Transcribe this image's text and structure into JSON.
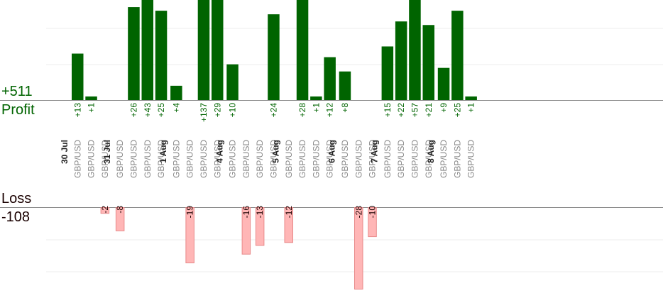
{
  "summary": {
    "profit_total": "+511",
    "profit_label": "Profit",
    "loss_label": "Loss",
    "loss_total": "-108"
  },
  "colors": {
    "profit_bar": "#006400",
    "loss_bar_fill": "#ffb6b6",
    "loss_bar_stroke": "#e88a8a",
    "profit_text": "#006400",
    "loss_text": "#1a0000",
    "category_text": "#888888",
    "date_text": "#222222",
    "grid": "#eeeeee",
    "axis": "#888888"
  },
  "chart_data": {
    "type": "bar",
    "groups": [
      {
        "date": "30 Jul",
        "bars": [
          {
            "label": "GBP/USD",
            "profit": 13
          },
          {
            "label": "GBP/USD",
            "profit": 1
          },
          {
            "label": "GBP/USD",
            "loss": -2
          }
        ]
      },
      {
        "date": "31 Jul",
        "bars": [
          {
            "label": "GBP/USD",
            "loss": -8
          },
          {
            "label": "GBP/USD",
            "profit": 26
          },
          {
            "label": "GBP/USD",
            "profit": 43
          },
          {
            "label": "GBP/USD",
            "profit": 25
          }
        ]
      },
      {
        "date": "1 Aug",
        "bars": [
          {
            "label": "GBP/USD",
            "profit": 4
          },
          {
            "label": "GBP/USD",
            "loss": -19
          },
          {
            "label": "GBP/USD",
            "profit": 137
          },
          {
            "label": "GBP/USD",
            "profit": 29
          }
        ]
      },
      {
        "date": "4 Aug",
        "bars": [
          {
            "label": "GBP/USD",
            "profit": 10
          },
          {
            "label": "GBP/USD",
            "loss": -16
          },
          {
            "label": "GBP/USD",
            "loss": -13
          },
          {
            "label": "GBP/USD",
            "profit": 24
          }
        ]
      },
      {
        "date": "5 Aug",
        "bars": [
          {
            "label": "GBP/USD",
            "loss": -12
          },
          {
            "label": "GBP/USD",
            "profit": 28
          },
          {
            "label": "GBP/USD",
            "profit": 1
          },
          {
            "label": "GBP/USD",
            "profit": 12
          }
        ]
      },
      {
        "date": "6 Aug",
        "bars": [
          {
            "label": "GBP/USD",
            "profit": 8
          },
          {
            "label": "GBP/USD",
            "loss": -28
          },
          {
            "label": "GBP/USD",
            "loss": -10
          }
        ]
      },
      {
        "date": "7 Aug",
        "bars": [
          {
            "label": "GBP/USD",
            "profit": 15
          },
          {
            "label": "GBP/USD",
            "profit": 22
          },
          {
            "label": "GBP/USD",
            "profit": 57
          },
          {
            "label": "GBP/USD",
            "profit": 21
          }
        ]
      },
      {
        "date": "8 Aug",
        "bars": [
          {
            "label": "GBP/USD",
            "profit": 9
          },
          {
            "label": "GBP/USD",
            "profit": 25
          },
          {
            "label": "GBP/USD",
            "profit": 1
          }
        ]
      }
    ],
    "profit_ylim": [
      0,
      28
    ],
    "loss_ylim": [
      -28,
      0
    ],
    "grid": true,
    "legend": "none"
  }
}
